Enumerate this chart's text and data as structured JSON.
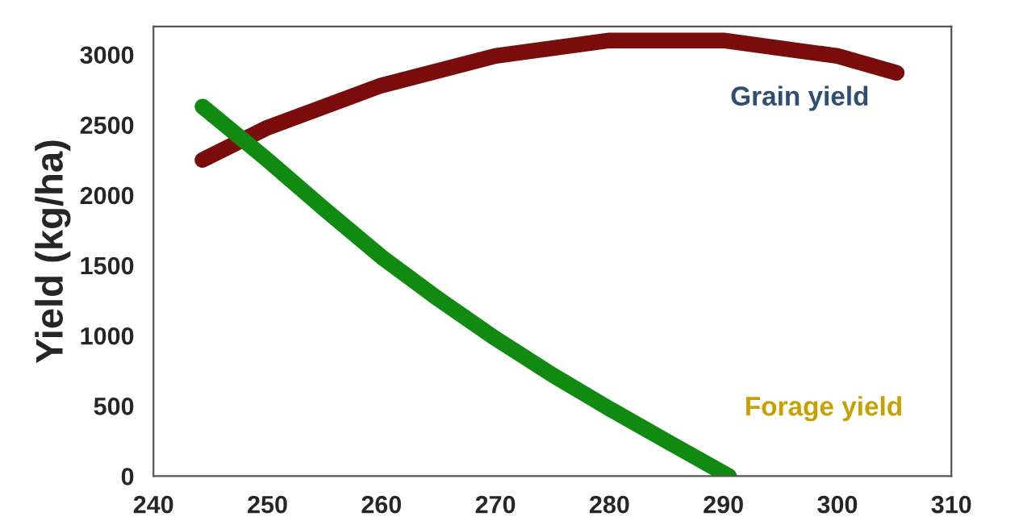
{
  "chart_data": {
    "type": "line",
    "ylabel": "Yield (kg/ha)",
    "xlim": [
      240,
      310
    ],
    "xticks": [
      240,
      250,
      260,
      270,
      280,
      290,
      300,
      310
    ],
    "ylim": [
      0,
      3200
    ],
    "yticks": [
      0,
      500,
      1000,
      1500,
      2000,
      2500,
      3000
    ],
    "series": [
      {
        "name": "Grain yield",
        "color": "#7b0c0c",
        "x": [
          244.3,
          250,
          260,
          270,
          280,
          290,
          300,
          305.2
        ],
        "values": [
          2250,
          2480,
          2780,
          2990,
          3100,
          3100,
          2990,
          2870
        ]
      },
      {
        "name": "Forage yield",
        "color": "#108a10",
        "x": [
          244.3,
          250,
          255,
          260,
          265,
          270,
          275,
          280,
          285,
          290.5
        ],
        "values": [
          2630,
          2250,
          1900,
          1560,
          1260,
          980,
          720,
          480,
          250,
          0
        ]
      }
    ],
    "grid": false,
    "legend": false,
    "marker": "none",
    "line_style": "solid"
  }
}
